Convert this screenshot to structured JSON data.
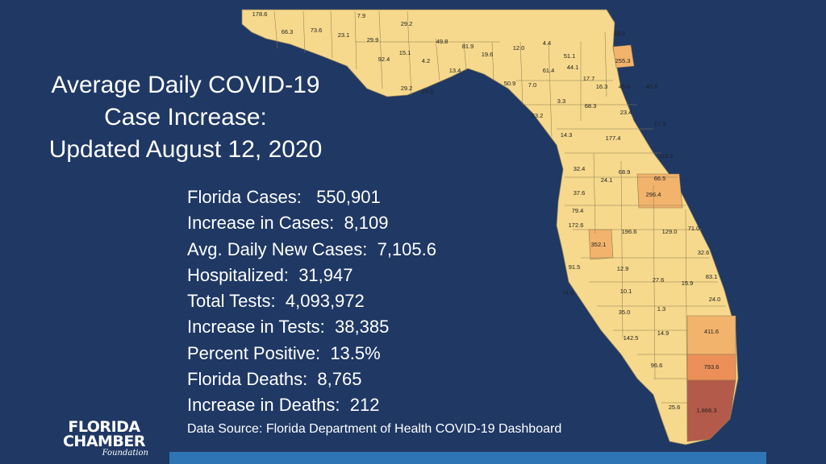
{
  "title": {
    "line1": "Average Daily COVID-19",
    "line2": "Case Increase:",
    "line3": "Updated August 12, 2020"
  },
  "stats": [
    {
      "label": "Florida Cases:",
      "value": "550,901"
    },
    {
      "label": "Increase in Cases:",
      "value": "8,109"
    },
    {
      "label": "Avg. Daily New Cases:",
      "value": "7,105.6"
    },
    {
      "label": "Hospitalized:",
      "value": "31,947"
    },
    {
      "label": "Total Tests:",
      "value": "4,093,972"
    },
    {
      "label": "Increase in Tests:",
      "value": "38,385"
    },
    {
      "label": "Percent Positive:",
      "value": "13.5%"
    },
    {
      "label": "Florida Deaths:",
      "value": "8,765"
    },
    {
      "label": "Increase in Deaths:",
      "value": "212"
    }
  ],
  "source": "Data Source:  Florida Department of Health COVID-19 Dashboard",
  "logo": {
    "line1": "FLORIDA",
    "line2": "CHAMBER",
    "line3": "Foundation"
  },
  "colors": {
    "background": "#1f3864",
    "county_low": "#f6d98c",
    "county_mid": "#f2b36c",
    "county_high": "#ec8f58",
    "county_highest": "#b45a4a",
    "bottom_bar": "#2e75b6"
  },
  "map_labels": [
    "178.6",
    "66.3",
    "73.6",
    "23.1",
    "7.9",
    "29.2",
    "29.9",
    "92.4",
    "15.1",
    "49.8",
    "81.9",
    "4.2",
    "13.4",
    "19.6",
    "12.0",
    "4.4",
    "18.6",
    "51.1",
    "255.3",
    "61.4",
    "44.1",
    "29.2",
    "23.6",
    "50.9",
    "7.0",
    "17.7",
    "16.3",
    "45.6",
    "45.6",
    "3.3",
    "68.3",
    "23.4",
    "23.2",
    "17.9",
    "14.3",
    "177.4",
    "111.2",
    "32.4",
    "24.1",
    "68.9",
    "66.5",
    "296.4",
    "37.6",
    "79.4",
    "172.6",
    "352.1",
    "196.6",
    "129.0",
    "71.0",
    "32.6",
    "91.5",
    "12.9",
    "27.6",
    "15.9",
    "83.1",
    "74.6",
    "10.1",
    "24.0",
    "35.0",
    "1.3",
    "411.6",
    "142.5",
    "14.9",
    "96.6",
    "793.6",
    "25.6",
    "1,866.3"
  ]
}
